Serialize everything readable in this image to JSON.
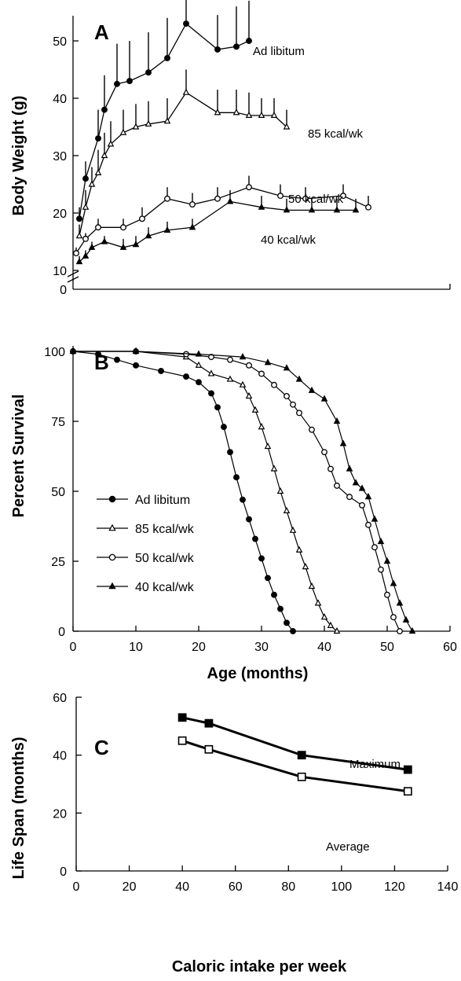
{
  "figure": {
    "panels": [
      "A",
      "B",
      "C"
    ],
    "shared_xlabel_ab": "Age (months)"
  },
  "colors": {
    "ink": "#000000",
    "background": "#ffffff"
  },
  "chart_data": [
    {
      "panel": "A",
      "type": "line",
      "ylabel": "Body Weight (g)",
      "xlim": [
        0,
        60
      ],
      "ylim": [
        10,
        55
      ],
      "y_axis_break": true,
      "yticks": [
        "0",
        "10",
        "20",
        "30",
        "40",
        "50"
      ],
      "grid": false,
      "series": [
        {
          "name": "Ad libitum",
          "marker": "filled-circle",
          "x": [
            1,
            2,
            4,
            5,
            7,
            9,
            12,
            15,
            18,
            23,
            26,
            28
          ],
          "y": [
            19,
            26,
            33,
            38,
            42.5,
            43,
            44.5,
            47,
            53,
            48.5,
            49,
            50
          ],
          "err": [
            2,
            3,
            5,
            6,
            7,
            7,
            7,
            7,
            7,
            6,
            7,
            7
          ]
        },
        {
          "name": "85 kcal/wk",
          "marker": "open-triangle",
          "x": [
            1,
            2,
            3,
            4,
            5,
            6,
            8,
            10,
            12,
            15,
            18,
            23,
            26,
            28,
            30,
            32,
            34
          ],
          "y": [
            16,
            21,
            25,
            27,
            30,
            32,
            34,
            35,
            35.5,
            36,
            41,
            37.5,
            37.5,
            37,
            37,
            37,
            35
          ],
          "err": [
            2,
            3,
            3,
            4,
            4,
            4,
            4,
            4,
            4,
            4,
            4,
            4,
            4,
            4,
            3,
            3,
            3
          ]
        },
        {
          "name": "50 kcal/wk",
          "marker": "open-circle",
          "x": [
            0.5,
            2,
            4,
            8,
            11,
            15,
            19,
            23,
            28,
            33,
            37,
            43,
            47
          ],
          "y": [
            13,
            15.5,
            17.5,
            17.5,
            19,
            22.5,
            21.5,
            22.5,
            24.5,
            23,
            22.5,
            23,
            21
          ],
          "err": [
            1,
            1,
            1.5,
            1.5,
            2,
            2,
            2,
            2,
            2,
            2,
            2,
            2,
            2
          ]
        },
        {
          "name": "40 kcal/wk",
          "marker": "filled-triangle",
          "x": [
            1,
            2,
            3,
            5,
            8,
            10,
            12,
            15,
            19,
            25,
            30,
            34,
            38,
            42,
            45
          ],
          "y": [
            11.5,
            12.5,
            14,
            15,
            14,
            14.5,
            16,
            17,
            17.5,
            22,
            21,
            20.5,
            20.5,
            20.5,
            20.5
          ],
          "err": [
            1,
            1,
            1,
            1,
            1.5,
            1.5,
            1.5,
            1.5,
            1.5,
            2,
            2,
            2,
            2,
            2,
            2
          ]
        }
      ]
    },
    {
      "panel": "B",
      "type": "line",
      "xlabel": "Age (months)",
      "ylabel": "Percent Survival",
      "xlim": [
        0,
        60
      ],
      "ylim": [
        0,
        100
      ],
      "xticks": [
        "0",
        "10",
        "20",
        "30",
        "40",
        "50",
        "60"
      ],
      "yticks": [
        "0",
        "25",
        "50",
        "75",
        "100"
      ],
      "legend_position": "bottom-left",
      "grid": false,
      "series": [
        {
          "name": "Ad libitum",
          "marker": "filled-circle",
          "x": [
            0,
            4,
            7,
            10,
            14,
            18,
            20,
            22,
            23,
            24,
            25,
            26,
            27,
            28,
            29,
            30,
            31,
            32,
            33,
            34,
            35
          ],
          "y": [
            100,
            99,
            97,
            95,
            93,
            91,
            89,
            85,
            80,
            73,
            64,
            55,
            47,
            40,
            33,
            26,
            19,
            13,
            8,
            3,
            0
          ]
        },
        {
          "name": "85 kcal/wk",
          "marker": "open-triangle",
          "x": [
            0,
            10,
            18,
            20,
            22,
            25,
            27,
            28,
            29,
            30,
            31,
            32,
            33,
            34,
            35,
            36,
            37,
            38,
            39,
            40,
            41,
            42
          ],
          "y": [
            100,
            100,
            98,
            95,
            92,
            90,
            88,
            84,
            79,
            73,
            66,
            58,
            50,
            43,
            36,
            29,
            23,
            16,
            10,
            5,
            2,
            0
          ]
        },
        {
          "name": "50 kcal/wk",
          "marker": "open-circle",
          "x": [
            0,
            10,
            18,
            22,
            25,
            28,
            30,
            32,
            34,
            35,
            36,
            38,
            40,
            41,
            42,
            44,
            46,
            47,
            48,
            49,
            50,
            51,
            52
          ],
          "y": [
            100,
            100,
            99,
            98,
            97,
            95,
            92,
            88,
            84,
            81,
            78,
            72,
            64,
            58,
            52,
            48,
            45,
            38,
            30,
            22,
            13,
            5,
            0
          ]
        },
        {
          "name": "40 kcal/wk",
          "marker": "filled-triangle",
          "x": [
            0,
            10,
            20,
            27,
            31,
            34,
            36,
            38,
            40,
            42,
            43,
            44,
            45,
            46,
            47,
            48,
            49,
            50,
            51,
            52,
            53,
            54
          ],
          "y": [
            100,
            100,
            99,
            98,
            96,
            94,
            90,
            86,
            83,
            75,
            67,
            58,
            53,
            51,
            48,
            40,
            32,
            25,
            17,
            10,
            4,
            0
          ]
        }
      ]
    },
    {
      "panel": "C",
      "type": "line",
      "xlabel": "Caloric intake per week",
      "ylabel": "Life Span (months)",
      "xlim": [
        0,
        140
      ],
      "ylim": [
        0,
        60
      ],
      "xticks": [
        "0",
        "20",
        "40",
        "60",
        "80",
        "100",
        "120",
        "140"
      ],
      "yticks": [
        "0",
        "20",
        "40",
        "60"
      ],
      "grid": false,
      "series": [
        {
          "name": "Maximum",
          "marker": "filled-square",
          "x": [
            40,
            50,
            85,
            125
          ],
          "y": [
            53,
            51,
            40,
            35
          ]
        },
        {
          "name": "Average",
          "marker": "open-square",
          "x": [
            40,
            50,
            85,
            125
          ],
          "y": [
            45,
            42,
            32.5,
            27.5
          ]
        }
      ]
    }
  ]
}
